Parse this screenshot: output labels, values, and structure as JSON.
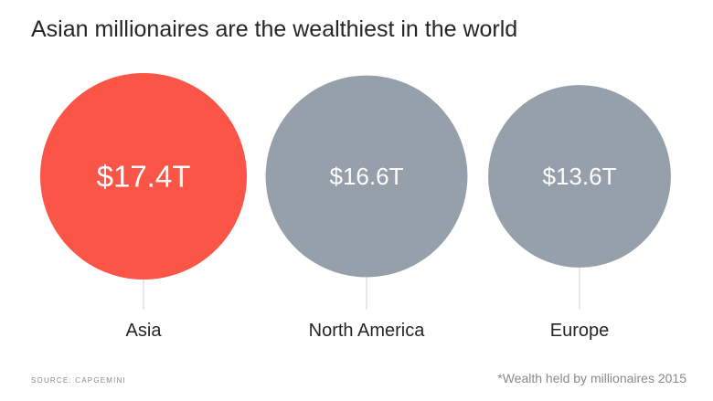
{
  "title": "Asian millionaires are the wealthiest in the world",
  "source": "SOURCE: CAPGEMINI",
  "note": "*Wealth held by millionaires 2015",
  "colors": {
    "highlight": "#fa5547",
    "default": "#95a0ab",
    "text": "#262626",
    "muted": "#8a8a8a"
  },
  "chart_data": {
    "type": "bubble",
    "title": "Asian millionaires are the wealthiest in the world",
    "categories": [
      "Asia",
      "North America",
      "Europe"
    ],
    "values": [
      17.4,
      16.6,
      13.6
    ],
    "labels": [
      "$17.4T",
      "$16.6T",
      "$13.6T"
    ],
    "unit": "trillion USD",
    "highlight": "Asia"
  }
}
